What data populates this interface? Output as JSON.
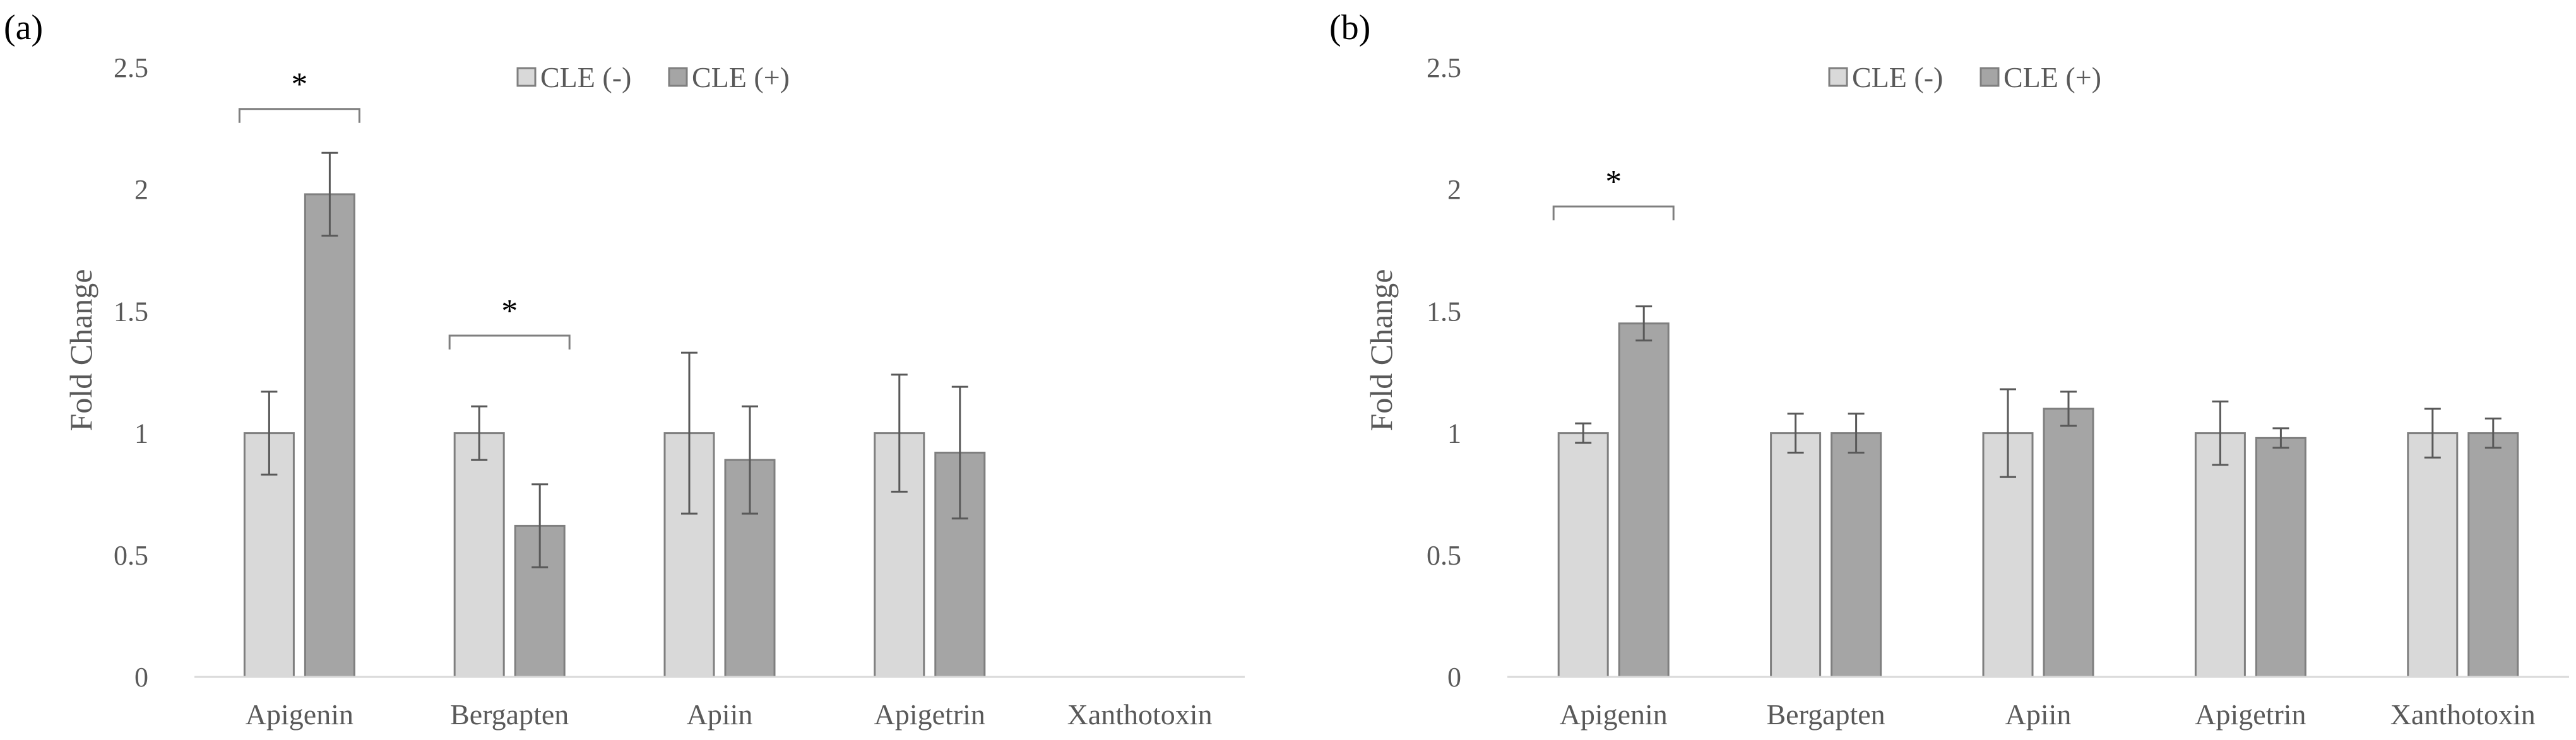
{
  "colors": {
    "series_light": "#d9d9d9",
    "series_dark": "#a5a5a5",
    "bar_border": "#7f7f7f",
    "error_bar": "#595959",
    "axis_line": "#d9d9d9",
    "bracket": "#7f7f7f",
    "text": "#595959"
  },
  "chart_data": [
    {
      "panel_label": "(a)",
      "type": "bar",
      "ylabel": "Fold Change",
      "xlabel": "",
      "ylim": [
        0,
        2.5
      ],
      "yticks": [
        "0",
        "0.5",
        "1",
        "1.5",
        "2",
        "2.5"
      ],
      "grid": false,
      "legend_position": "top-center",
      "categories": [
        "Apigenin",
        "Bergapten",
        "Apiin",
        "Apigetrin",
        "Xanthotoxin"
      ],
      "series": [
        {
          "name": "CLE (-)",
          "values": [
            1.0,
            1.0,
            1.0,
            1.0,
            null
          ],
          "errors": [
            0.17,
            0.11,
            0.33,
            0.24,
            null
          ]
        },
        {
          "name": "CLE (+)",
          "values": [
            1.98,
            0.62,
            0.89,
            0.92,
            null
          ],
          "errors": [
            0.17,
            0.17,
            0.22,
            0.27,
            null
          ]
        }
      ],
      "significance": [
        {
          "category_index": 0,
          "label": "*",
          "bracket_value": 2.33
        },
        {
          "category_index": 1,
          "label": "*",
          "bracket_value": 1.4
        }
      ]
    },
    {
      "panel_label": "(b)",
      "type": "bar",
      "ylabel": "Fold Change",
      "xlabel": "",
      "ylim": [
        0,
        2.5
      ],
      "yticks": [
        "0",
        "0.5",
        "1",
        "1.5",
        "2",
        "2.5"
      ],
      "grid": false,
      "legend_position": "top-center",
      "categories": [
        "Apigenin",
        "Bergapten",
        "Apiin",
        "Apigetrin",
        "Xanthotoxin"
      ],
      "series": [
        {
          "name": "CLE (-)",
          "values": [
            1.0,
            1.0,
            1.0,
            1.0,
            1.0
          ],
          "errors": [
            0.04,
            0.08,
            0.18,
            0.13,
            0.1
          ]
        },
        {
          "name": "CLE (+)",
          "values": [
            1.45,
            1.0,
            1.1,
            0.98,
            1.0
          ],
          "errors": [
            0.07,
            0.08,
            0.07,
            0.04,
            0.06
          ]
        }
      ],
      "significance": [
        {
          "category_index": 0,
          "label": "*",
          "bracket_value": 1.93
        }
      ]
    }
  ]
}
